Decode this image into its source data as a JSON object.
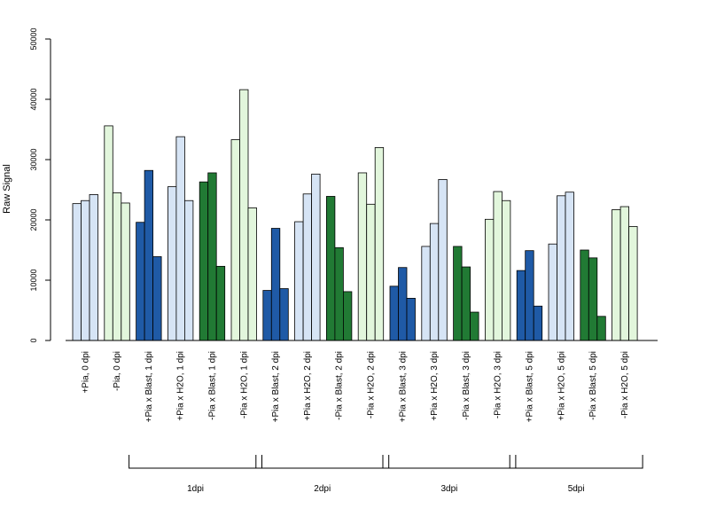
{
  "chart_data": {
    "type": "bar",
    "title": "",
    "xlabel": "",
    "ylabel": "Raw Signal",
    "ylim": [
      0,
      50000
    ],
    "yticks": [
      0,
      10000,
      20000,
      30000,
      40000,
      50000
    ],
    "grid": false,
    "colors": {
      "plus_pia_blast": "#1f5aa6",
      "plus_pia_h2o": "#d6e4f5",
      "minus_pia_blast": "#217a34",
      "minus_pia_h2o": "#e2f6dc"
    },
    "categories": [
      "+Pia, 0 dpi",
      "-Pia, 0 dpi",
      "+Pia x Blast, 1 dpi",
      "+Pia x H2O, 1 dpi",
      "-Pia x Blast, 1 dpi",
      "-Pia x H2O, 1 dpi",
      "+Pia x Blast, 2 dpi",
      "+Pia x H2O, 2 dpi",
      "-Pia x Blast, 2 dpi",
      "-Pia x H2O, 2 dpi",
      "+Pia x Blast, 3 dpi",
      "+Pia x H2O, 3 dpi",
      "-Pia x Blast, 3 dpi",
      "-Pia x H2O, 3 dpi",
      "+Pia x Blast, 5 dpi",
      "+Pia x H2O, 5 dpi",
      "-Pia x Blast, 5 dpi",
      "-Pia x H2O, 5 dpi"
    ],
    "category_color": [
      "plus_pia_h2o",
      "minus_pia_h2o",
      "plus_pia_blast",
      "plus_pia_h2o",
      "minus_pia_blast",
      "minus_pia_h2o",
      "plus_pia_blast",
      "plus_pia_h2o",
      "minus_pia_blast",
      "minus_pia_h2o",
      "plus_pia_blast",
      "plus_pia_h2o",
      "minus_pia_blast",
      "minus_pia_h2o",
      "plus_pia_blast",
      "plus_pia_h2o",
      "minus_pia_blast",
      "minus_pia_h2o"
    ],
    "values": [
      [
        22700,
        23200,
        24200
      ],
      [
        35600,
        24500,
        22800
      ],
      [
        19600,
        28200,
        13900
      ],
      [
        25500,
        33800,
        23200
      ],
      [
        26300,
        27800,
        12300
      ],
      [
        33300,
        41600,
        22000
      ],
      [
        8300,
        18600,
        8600
      ],
      [
        19700,
        24300,
        27600
      ],
      [
        23900,
        15400,
        8100
      ],
      [
        27800,
        22600,
        32000
      ],
      [
        9000,
        12100,
        7000
      ],
      [
        15600,
        19400,
        26700
      ],
      [
        15600,
        12200,
        4700
      ],
      [
        20100,
        24700,
        23200
      ],
      [
        11600,
        14900,
        5700
      ],
      [
        16000,
        24000,
        24600
      ],
      [
        15000,
        13700,
        4000
      ],
      [
        21700,
        22200,
        18900
      ]
    ],
    "groups": [
      {
        "label": "1dpi",
        "start": 2,
        "end": 5
      },
      {
        "label": "2dpi",
        "start": 6,
        "end": 9
      },
      {
        "label": "3dpi",
        "start": 10,
        "end": 13
      },
      {
        "label": "5dpi",
        "start": 14,
        "end": 17
      }
    ]
  }
}
